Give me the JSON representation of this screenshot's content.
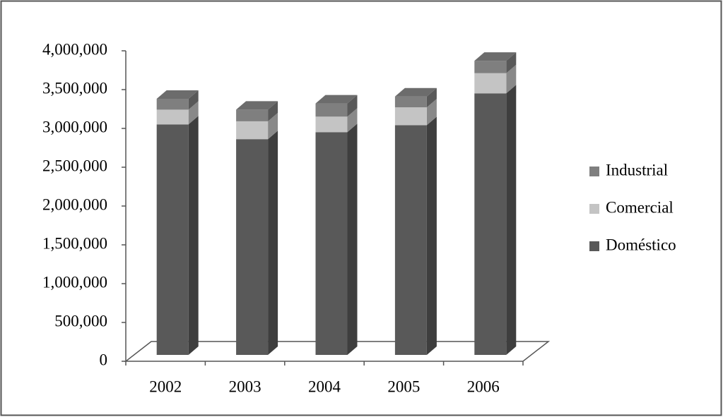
{
  "chart_data": {
    "type": "bar3d_stacked",
    "categories": [
      "2002",
      "2003",
      "2004",
      "2005",
      "2006"
    ],
    "series": [
      {
        "name": "Doméstico",
        "color": "#595959",
        "values": [
          2970000,
          2780000,
          2870000,
          2960000,
          3370000
        ]
      },
      {
        "name": "Comercial",
        "color": "#c4c4c4",
        "values": [
          190000,
          230000,
          200000,
          230000,
          260000
        ]
      },
      {
        "name": "Industrial",
        "color": "#7f7f7f",
        "values": [
          140000,
          150000,
          170000,
          140000,
          160000
        ]
      }
    ],
    "ylim": [
      0,
      4000000
    ],
    "yticks": [
      0,
      {
        "value": 500000,
        "label": "500,000"
      },
      {
        "value": 1000000,
        "label": "1,000,000"
      },
      {
        "value": 1500000,
        "label": "1,500,000"
      },
      {
        "value": 2000000,
        "label": "2,000,000"
      },
      {
        "value": 2500000,
        "label": "2,500,000"
      },
      {
        "value": 3000000,
        "label": "3,000,000"
      },
      {
        "value": 3500000,
        "label": "3,500,000"
      },
      {
        "value": 4000000,
        "label": "4,000,000"
      }
    ],
    "legend": "right"
  }
}
